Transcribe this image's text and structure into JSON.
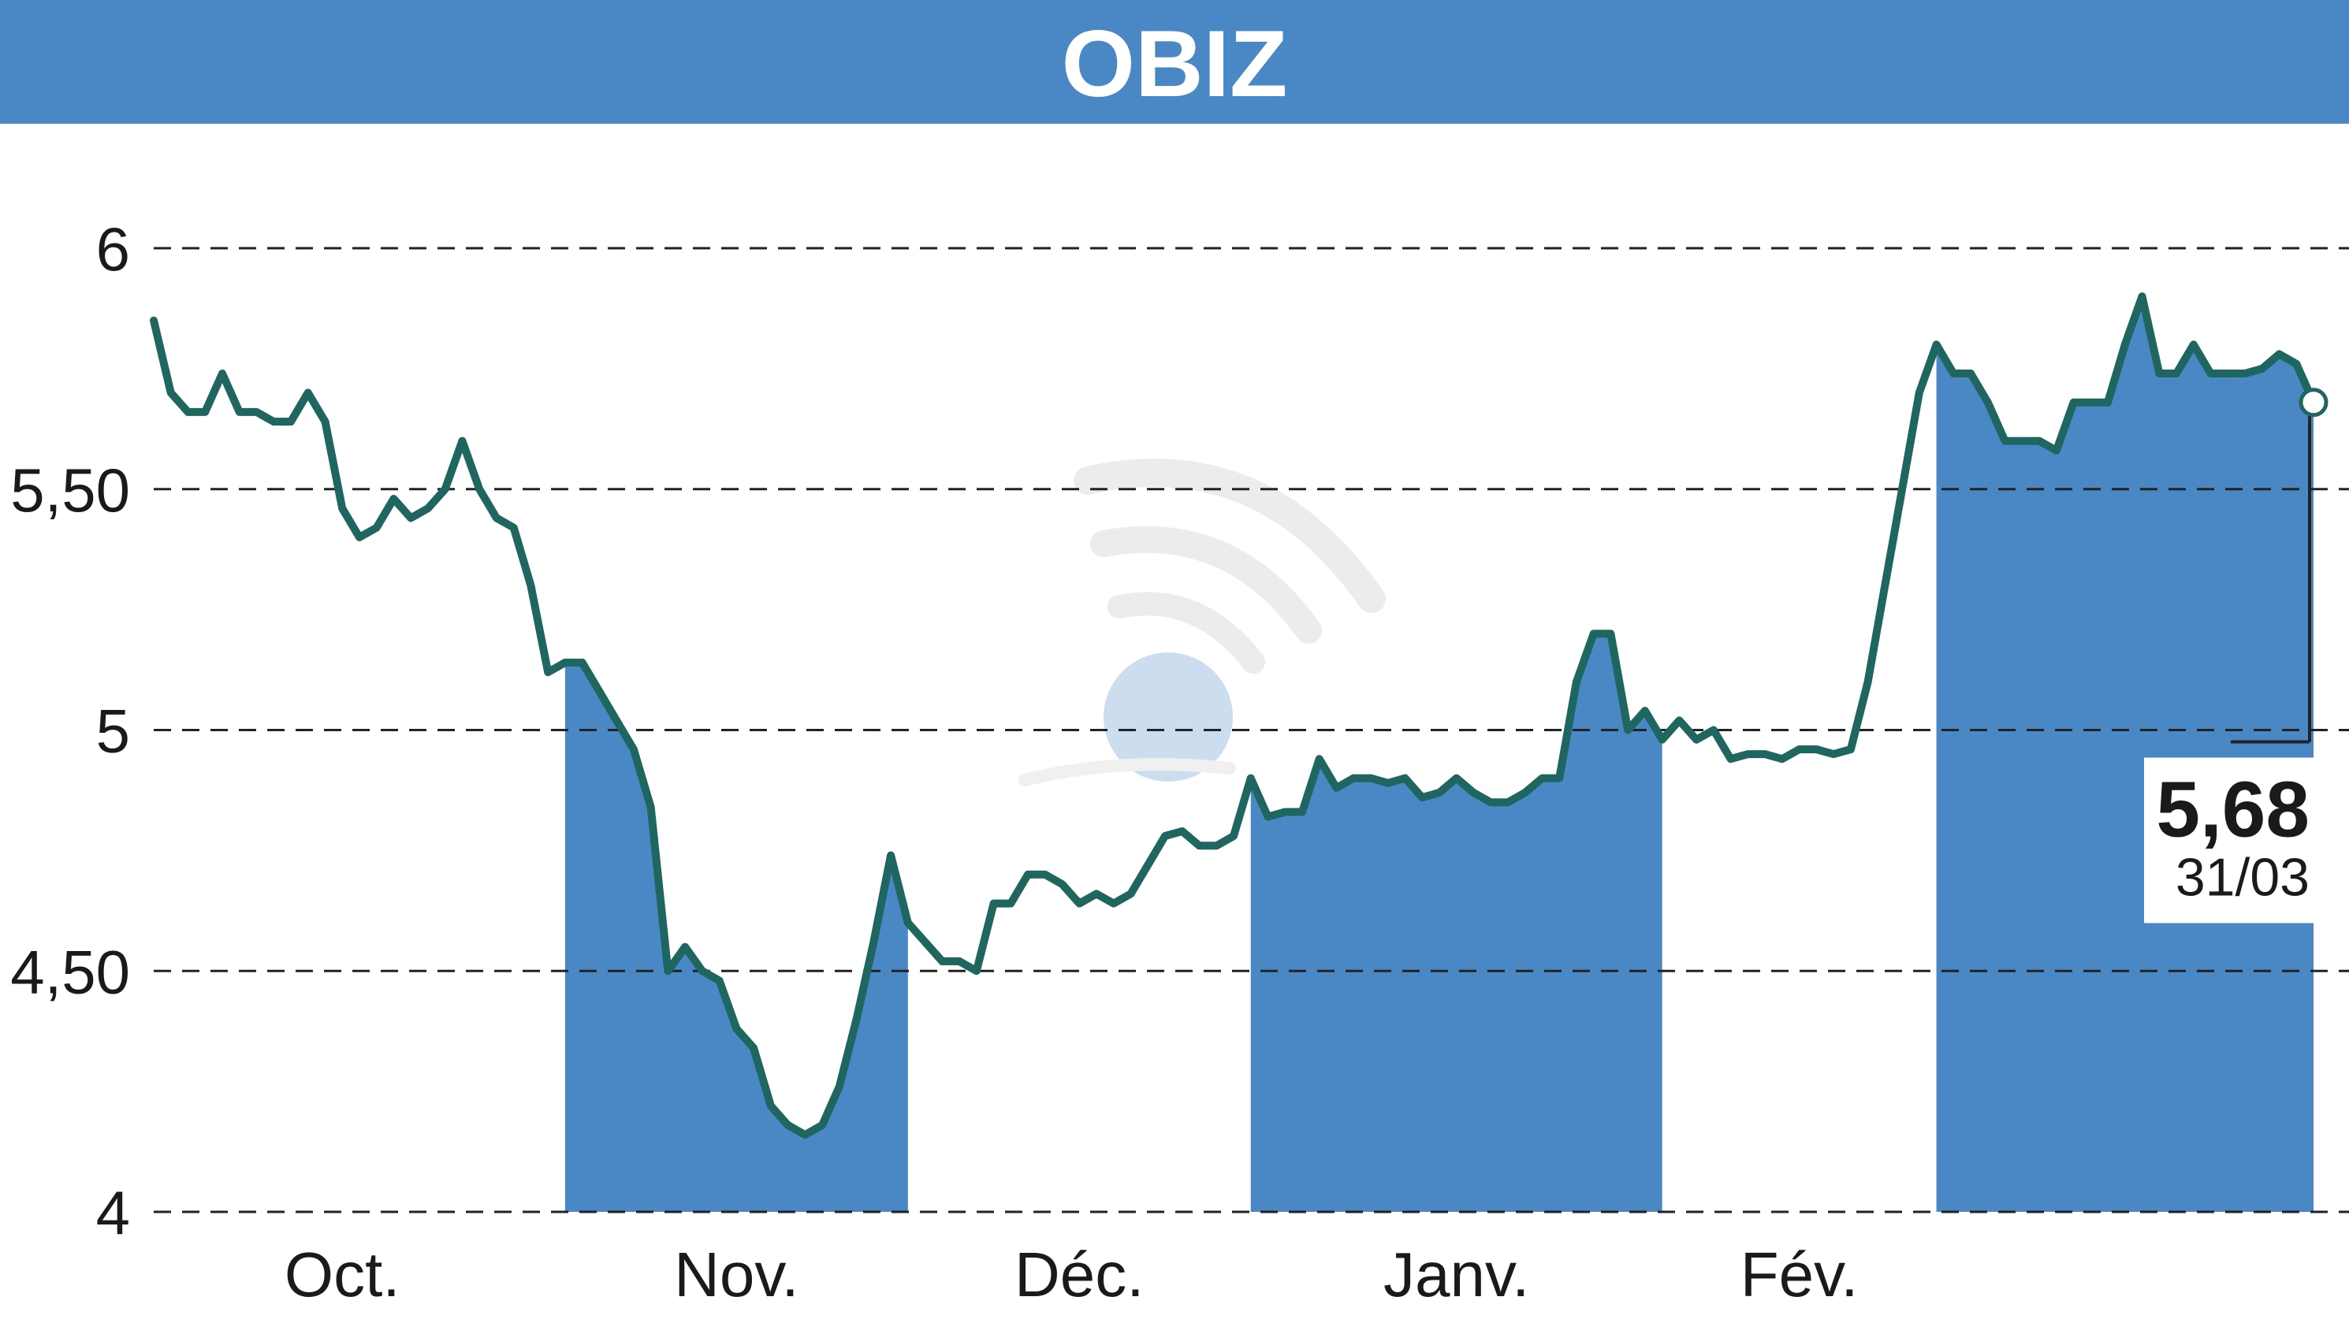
{
  "chart_data": {
    "type": "line",
    "title": "OBIZ",
    "xlabel": "",
    "ylabel": "",
    "ylim": [
      4,
      6.12
    ],
    "yticks": [
      4,
      4.5,
      5,
      5.5,
      6
    ],
    "ytick_labels": [
      "4",
      "4,50",
      "5",
      "5,50",
      "6"
    ],
    "month_labels": [
      "Oct.",
      "Nov.",
      "Déc.",
      "Janv.",
      "Fév."
    ],
    "grid": "dashed horizontal",
    "shaded_months": "alternate months filled under the line",
    "series": [
      {
        "values": [
          5.85,
          5.7,
          5.66,
          5.66,
          5.74,
          5.66,
          5.66,
          5.64,
          5.64,
          5.7,
          5.64,
          5.46,
          5.4,
          5.42,
          5.48,
          5.44,
          5.46,
          5.5,
          5.6,
          5.5,
          5.44,
          5.42,
          5.3,
          5.12,
          5.14,
          5.14,
          5.08,
          5.02,
          4.96,
          4.84,
          4.5,
          4.55,
          4.5,
          4.48,
          4.38,
          4.34,
          4.22,
          4.18,
          4.16,
          4.18,
          4.26,
          4.4,
          4.56,
          4.74,
          4.6,
          4.56,
          4.52,
          4.52,
          4.5,
          4.64,
          4.64,
          4.7,
          4.7,
          4.68,
          4.64,
          4.66,
          4.64,
          4.66,
          4.72,
          4.78,
          4.79,
          4.76,
          4.76,
          4.78,
          4.9,
          4.82,
          4.83,
          4.83,
          4.94,
          4.88,
          4.9,
          4.9,
          4.89,
          4.9,
          4.86,
          4.87,
          4.9,
          4.87,
          4.85,
          4.85,
          4.87,
          4.9,
          4.9,
          5.1,
          5.2,
          5.2,
          5.0,
          5.04,
          4.98,
          5.02,
          4.98,
          5.0,
          4.94,
          4.95,
          4.95,
          4.94,
          4.96,
          4.96,
          4.95,
          4.96,
          5.1,
          5.3,
          5.5,
          5.7,
          5.8,
          5.74,
          5.74,
          5.68,
          5.6,
          5.6,
          5.6,
          5.58,
          5.68,
          5.68,
          5.68,
          5.8,
          5.9,
          5.74,
          5.74,
          5.8,
          5.74,
          5.74,
          5.74,
          5.75,
          5.78,
          5.76,
          5.68
        ]
      }
    ],
    "last_value_label": "5,68",
    "last_date_label": "31/03",
    "colors": {
      "header": "#4a87c5",
      "fill": "#4a87c5",
      "line": "#1f6660",
      "grid": "#222222",
      "text": "#1a1a1a",
      "header_text": "#ffffff"
    }
  }
}
